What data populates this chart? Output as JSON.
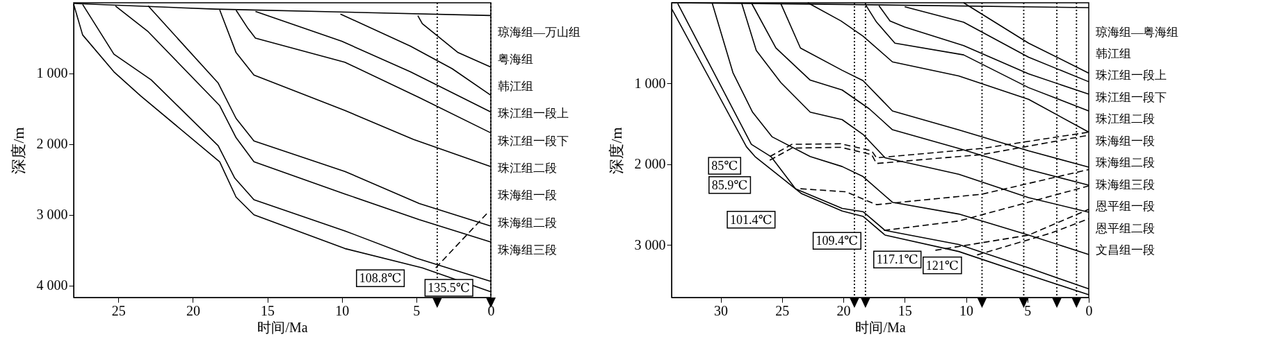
{
  "chart_data": [
    {
      "type": "line",
      "xlabel": "时间/Ma",
      "ylabel": "深度/m",
      "xlim": [
        28,
        0
      ],
      "xticks": [
        25,
        20,
        15,
        10,
        5,
        0
      ],
      "ylim": [
        4170,
        0
      ],
      "yticks": [
        {
          "value": 1000,
          "label": "1 000"
        },
        {
          "value": 2000,
          "label": "2 000"
        },
        {
          "value": 3000,
          "label": "3 000"
        },
        {
          "value": 4000,
          "label": "4 000"
        }
      ],
      "grid": false,
      "line_style": "solid",
      "series": [
        {
          "color": "#000000",
          "x": [
            28,
            18.5,
            0
          ],
          "values": [
            10,
            90,
            180
          ]
        },
        {
          "color": "#000000",
          "x": [
            4.9,
            4.6,
            2.2,
            0
          ],
          "values": [
            182,
            295,
            705,
            909
          ]
        },
        {
          "color": "#000000",
          "x": [
            10.1,
            5.4,
            2.6,
            0
          ],
          "values": [
            159,
            614,
            932,
            1309
          ]
        },
        {
          "color": "#000000",
          "x": [
            15.8,
            10,
            5.4,
            0
          ],
          "values": [
            123,
            545,
            977,
            1545
          ]
        },
        {
          "color": "#000000",
          "x": [
            17.1,
            16.3,
            15.8,
            9.8,
            4.8,
            0
          ],
          "values": [
            105,
            364,
            500,
            841,
            1341,
            1841
          ]
        },
        {
          "color": "#000000",
          "x": [
            18.2,
            17.1,
            15.9,
            9.8,
            5.2,
            0
          ],
          "values": [
            100,
            705,
            1023,
            1523,
            1932,
            2318
          ]
        },
        {
          "color": "#000000",
          "x": [
            23,
            18.3,
            17.1,
            15.9,
            9.8,
            4.8,
            0
          ],
          "values": [
            45,
            1136,
            1636,
            1955,
            2386,
            2841,
            3159
          ]
        },
        {
          "color": "#000000",
          "x": [
            25.2,
            23,
            18.2,
            17.1,
            15.9,
            9.8,
            4.8,
            0
          ],
          "values": [
            45,
            409,
            1455,
            1909,
            2250,
            2705,
            3068,
            3386
          ]
        },
        {
          "color": "#000000",
          "x": [
            27.4,
            25.3,
            22.8,
            18.3,
            17.2,
            15.9,
            9.8,
            5,
            0
          ],
          "values": [
            23,
            727,
            1091,
            2023,
            2477,
            2786,
            3227,
            3614,
            3941
          ]
        },
        {
          "color": "#000000",
          "x": [
            28,
            27.4,
            25.3,
            23.5,
            18.2,
            17.1,
            15.9,
            9.8,
            4.6,
            0
          ],
          "values": [
            23,
            455,
            977,
            1318,
            2250,
            2750,
            3000,
            3477,
            3750,
            4090
          ]
        },
        {
          "color": "#000000",
          "line_style": "dashed",
          "x": [
            3.7,
            0.2
          ],
          "values": [
            3750,
            2968
          ]
        }
      ],
      "ref_lines": [
        {
          "axis": "x",
          "value": 3.6,
          "line_style": "dotted"
        },
        {
          "axis": "x",
          "value": 0,
          "line_style": "dotted"
        }
      ],
      "annotations": [
        {
          "text": "108.8℃",
          "x": 4.6,
          "y": 3750
        },
        {
          "text": "135.5℃",
          "x": 0,
          "y": 4090
        },
        "琼海组—万山组",
        "粤海组",
        "韩江组",
        "珠江组一段上",
        "珠江组一段下",
        "珠江组二段",
        "珠海组一段",
        "珠海组二段",
        "珠海组三段"
      ]
    },
    {
      "type": "line",
      "xlabel": "时间/Ma",
      "ylabel": "深度/m",
      "xlim": [
        34,
        0
      ],
      "xticks": [
        30,
        25,
        20,
        15,
        10,
        5,
        0
      ],
      "ylim": [
        3650,
        0
      ],
      "yticks": [
        {
          "value": 1000,
          "label": "1 000"
        },
        {
          "value": 2000,
          "label": "2 000"
        },
        {
          "value": 3000,
          "label": "3 000"
        }
      ],
      "grid": false,
      "line_style": "solid",
      "series": [
        {
          "color": "#000000",
          "x": [
            34,
            20,
            0
          ],
          "values": [
            0,
            20,
            60
          ]
        },
        {
          "color": "#000000",
          "x": [
            10.2,
            4.9,
            0
          ],
          "values": [
            0,
            500,
            871
          ]
        },
        {
          "color": "#000000",
          "x": [
            15,
            10.2,
            4.9,
            0
          ],
          "values": [
            50,
            240,
            674,
            978
          ]
        },
        {
          "color": "#000000",
          "x": [
            17.1,
            16.2,
            15,
            10.2,
            4.9,
            0
          ],
          "values": [
            36,
            225,
            300,
            530,
            880,
            1132
          ]
        },
        {
          "color": "#000000",
          "x": [
            18.2,
            17.3,
            15.8,
            10.2,
            4.9,
            0
          ],
          "values": [
            22,
            239,
            500,
            645,
            1051,
            1340
          ]
        },
        {
          "color": "#000000",
          "x": [
            22.9,
            20.2,
            18.4,
            16,
            10.6,
            4.9,
            0
          ],
          "values": [
            0,
            224,
            413,
            732,
            906,
            1196,
            1602
          ]
        },
        {
          "color": "#000000",
          "x": [
            25.1,
            23.5,
            20.1,
            18.4,
            16,
            10.6,
            4.9,
            0
          ],
          "values": [
            10,
            560,
            836,
            964,
            1340,
            1573,
            1834,
            2036
          ]
        },
        {
          "color": "#000000",
          "x": [
            27.5,
            25.5,
            22.7,
            20.1,
            17.9,
            16,
            10.6,
            4.9,
            0
          ],
          "values": [
            0,
            560,
            958,
            1080,
            1312,
            1572,
            1804,
            2066,
            2259
          ]
        },
        {
          "color": "#000000",
          "x": [
            28.3,
            27.1,
            25.1,
            22.7,
            20.1,
            18.4,
            16.6,
            10.6,
            4.9,
            0
          ],
          "values": [
            0,
            591,
            988,
            1355,
            1447,
            1630,
            1920,
            2123,
            2413,
            2593
          ]
        },
        {
          "color": "#000000",
          "x": [
            30.7,
            29,
            27.4,
            25.8,
            22.7,
            20.1,
            18.4,
            16,
            10.6,
            4.9,
            0
          ],
          "values": [
            0,
            866,
            1355,
            1661,
            1905,
            2028,
            2152,
            2471,
            2616,
            2877,
            3117
          ]
        },
        {
          "color": "#000000",
          "x": [
            33.5,
            27.5,
            25.9,
            23.9,
            20.1,
            18.4,
            16.6,
            10.6,
            4.9,
            0
          ],
          "values": [
            10,
            1753,
            1905,
            2303,
            2547,
            2587,
            2819,
            2993,
            3283,
            3543
          ]
        },
        {
          "color": "#000000",
          "x": [
            34,
            27.9,
            27.2,
            23.4,
            20.1,
            18.4,
            16.6,
            10.6,
            4.9,
            0
          ],
          "values": [
            71,
            1783,
            1905,
            2364,
            2578,
            2645,
            2877,
            3080,
            3370,
            3616
          ]
        },
        {
          "color": "#000000",
          "line_style": "dashed",
          "x": [
            26,
            24.2,
            20.2,
            17.7,
            17.3,
            8.7,
            0
          ],
          "values": [
            1905,
            1753,
            1746,
            1833,
            1920,
            1804,
            1602
          ]
        },
        {
          "color": "#000000",
          "line_style": "dashed",
          "x": [
            26,
            24.2,
            20.2,
            17.7,
            17.3,
            8.7,
            0
          ],
          "values": [
            1950,
            1800,
            1790,
            1880,
            1990,
            1880,
            1640
          ]
        },
        {
          "color": "#000000",
          "line_style": "dashed",
          "x": [
            23.5,
            19.8,
            17.3,
            8.7,
            0
          ],
          "values": [
            2303,
            2341,
            2500,
            2370,
            2065
          ]
        },
        {
          "color": "#000000",
          "line_style": "dashed",
          "x": [
            16.7,
            10.6,
            0
          ],
          "values": [
            2819,
            2703,
            2268
          ]
        },
        {
          "color": "#000000",
          "line_style": "dashed",
          "x": [
            12.5,
            4.9,
            0
          ],
          "values": [
            3065,
            2877,
            2558
          ]
        },
        {
          "color": "#000000",
          "line_style": "dashed",
          "x": [
            9.1,
            3,
            0
          ],
          "values": [
            3123,
            2848,
            2674
          ]
        }
      ],
      "ref_lines": [
        {
          "axis": "x",
          "value": 19.1,
          "line_style": "dotted"
        },
        {
          "axis": "x",
          "value": 18.2,
          "line_style": "dotted"
        },
        {
          "axis": "x",
          "value": 8.7,
          "line_style": "dotted"
        },
        {
          "axis": "x",
          "value": 5.3,
          "line_style": "dotted"
        },
        {
          "axis": "x",
          "value": 2.6,
          "line_style": "dotted"
        },
        {
          "axis": "x",
          "value": 1,
          "line_style": "dotted"
        }
      ],
      "annotations": [
        {
          "text": "85℃",
          "x": 26.9,
          "y": 1890
        },
        {
          "text": "85.9℃",
          "x": 26.1,
          "y": 1905
        },
        {
          "text": "101.4℃",
          "x": 24.1,
          "y": 2334
        },
        {
          "text": "109.4℃",
          "x": 17.1,
          "y": 2819
        },
        {
          "text": "117.1℃",
          "x": 12.2,
          "y": 3051
        },
        {
          "text": "121℃",
          "x": 8.9,
          "y": 3123
        },
        "琼海组—粤海组",
        "韩江组",
        "珠江组一段上",
        "珠江组一段下",
        "珠江组二段",
        "珠海组一段",
        "珠海组二段",
        "珠海组三段",
        "恩平组一段",
        "恩平组二段",
        "文昌组一段"
      ]
    }
  ]
}
